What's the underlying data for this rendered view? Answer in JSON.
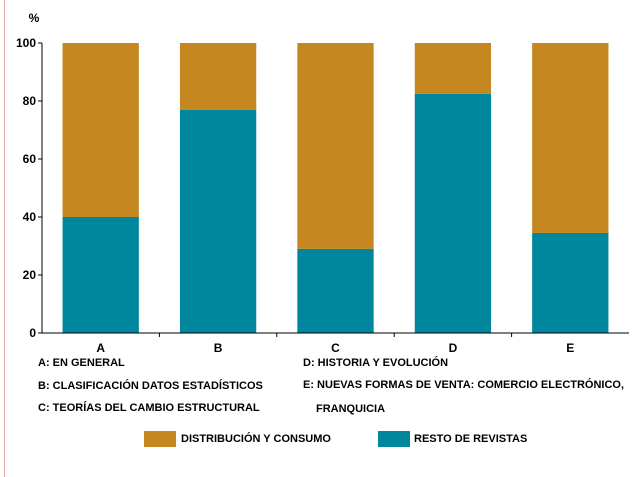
{
  "chart_data": {
    "type": "bar",
    "stacked": true,
    "ylabel": "%",
    "ylim": [
      0,
      100
    ],
    "yticks": [
      0,
      20,
      40,
      60,
      80,
      100
    ],
    "categories": [
      "A",
      "B",
      "C",
      "D",
      "E"
    ],
    "series": [
      {
        "name": "RESTO DE REVISTAS",
        "color": "#00869d",
        "values": [
          40,
          77,
          29,
          82.5,
          34.5
        ]
      },
      {
        "name": "DISTRIBUCIÓN Y CONSUMO",
        "color": "#c5871f",
        "values": [
          60,
          23,
          71,
          17.5,
          65.5
        ]
      }
    ],
    "grid": false,
    "legend_position": "bottom"
  },
  "notes": {
    "a": "A: EN GENERAL",
    "b": "B: CLASIFICACIÓN DATOS ESTADÍSTICOS",
    "c": "C: TEORÍAS DEL CAMBIO ESTRUCTURAL",
    "d": "D: HISTORIA Y EVOLUCIÓN",
    "e_line1": "E: NUEVAS FORMAS DE VENTA: COMERCIO ELECTRÓNICO,",
    "e_line2": "FRANQUICIA"
  },
  "legend": {
    "distribucion": "DISTRIBUCIÓN Y CONSUMO",
    "resto": "RESTO DE REVISTAS"
  },
  "colors": {
    "distribucion": "#c5871f",
    "resto": "#00869d",
    "axis": "#000000",
    "frame_line": "#e6a3a3"
  }
}
